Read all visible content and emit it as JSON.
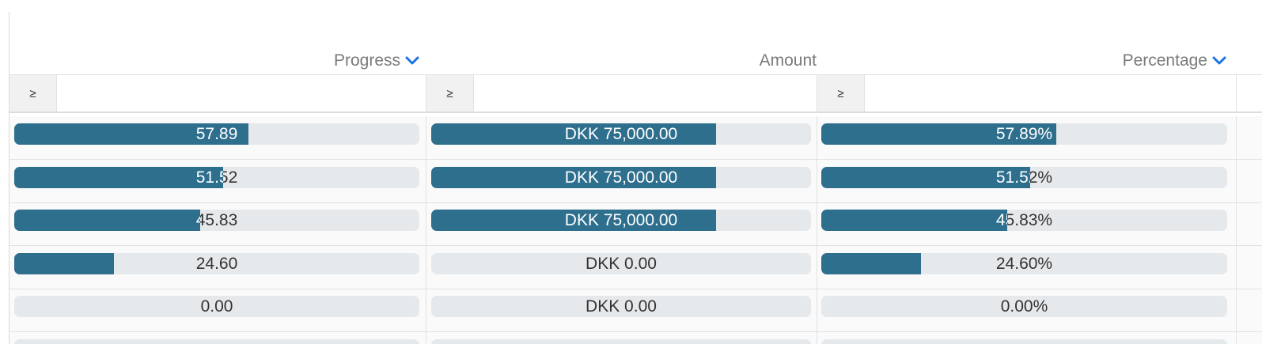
{
  "columns": [
    {
      "id": "progress",
      "label": "Progress",
      "has_menu": true
    },
    {
      "id": "amount",
      "label": "Amount",
      "has_menu": false
    },
    {
      "id": "percentage",
      "label": "Percentage",
      "has_menu": true
    }
  ],
  "filters": {
    "progress": {
      "operator": "≥",
      "value": ""
    },
    "amount": {
      "operator": "≥",
      "value": ""
    },
    "percentage": {
      "operator": "≥",
      "value": ""
    }
  },
  "rows": [
    {
      "progress": {
        "text": "57.89",
        "fill": 0.5789
      },
      "amount": {
        "text": "DKK 75,000.00",
        "fill": 0.75
      },
      "percentage": {
        "text": "57.89%",
        "fill": 0.5789
      }
    },
    {
      "progress": {
        "text": "51.52",
        "fill": 0.5152
      },
      "amount": {
        "text": "DKK 75,000.00",
        "fill": 0.75
      },
      "percentage": {
        "text": "51.52%",
        "fill": 0.5152
      }
    },
    {
      "progress": {
        "text": "45.83",
        "fill": 0.4583
      },
      "amount": {
        "text": "DKK 75,000.00",
        "fill": 0.75
      },
      "percentage": {
        "text": "45.83%",
        "fill": 0.4583
      }
    },
    {
      "progress": {
        "text": "24.60",
        "fill": 0.246
      },
      "amount": {
        "text": "DKK 0.00",
        "fill": 0
      },
      "percentage": {
        "text": "24.60%",
        "fill": 0.246
      }
    },
    {
      "progress": {
        "text": "0.00",
        "fill": 0
      },
      "amount": {
        "text": "DKK 0.00",
        "fill": 0
      },
      "percentage": {
        "text": "0.00%",
        "fill": 0
      }
    }
  ],
  "colors": {
    "bar_fill": "#2e6f8e",
    "bar_track": "#e6e9ec",
    "header_text": "#7a7a7a",
    "chevron": "#1a73e8"
  },
  "icons": {
    "column_menu": "chevron-down-icon"
  }
}
